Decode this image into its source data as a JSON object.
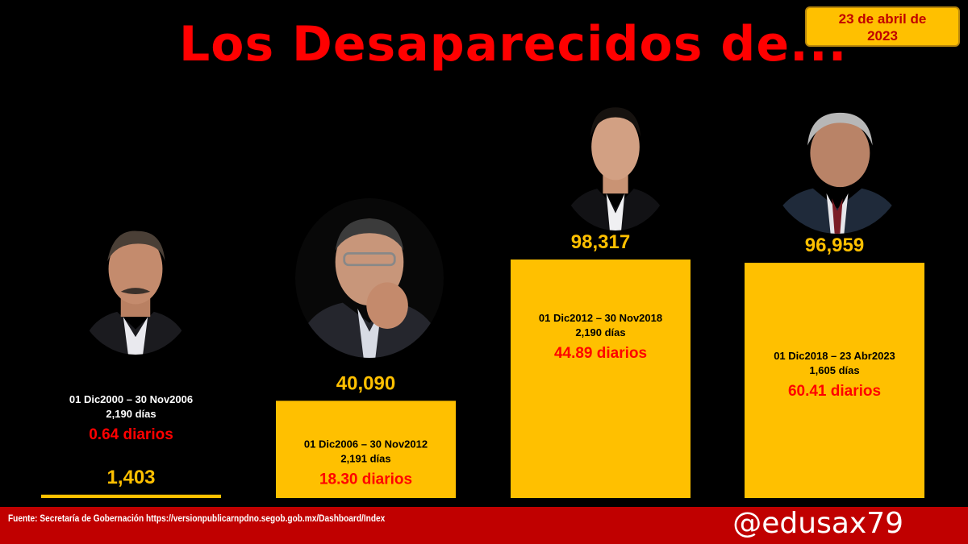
{
  "title": "Los Desaparecidos de...",
  "date": {
    "line1": "23 de abril de",
    "line2": "2023"
  },
  "footer": {
    "source": "Fuente: Secretaría de Gobernación https://versionpublicarnpdno.segob.gob.mx/Dashboard/Index",
    "handle": "@edusax79"
  },
  "colors": {
    "bar": "#ffc000",
    "accent": "#ff0000",
    "footer": "#c00000",
    "background": "#000000"
  },
  "chart_data": {
    "type": "bar",
    "title": "Los Desaparecidos de...",
    "values": [
      1403,
      40090,
      98317,
      96959
    ],
    "value_labels": [
      "1,403",
      "40,090",
      "98,317",
      "96,959"
    ],
    "periods": [
      "01 Dic2000 – 30 Nov2006",
      "01 Dic2006 – 30 Nov2012",
      "01 Dic2012 – 30 Nov2018",
      "01 Dic2018 – 23 Abr2023"
    ],
    "days": [
      "2,190 días",
      "2,191 días",
      "2,190 días",
      "1,605 días"
    ],
    "daily": [
      "0.64 diarios",
      "18.30 diarios",
      "44.89 diarios",
      "60.41 diarios"
    ],
    "ylim": [
      0,
      98317
    ]
  }
}
